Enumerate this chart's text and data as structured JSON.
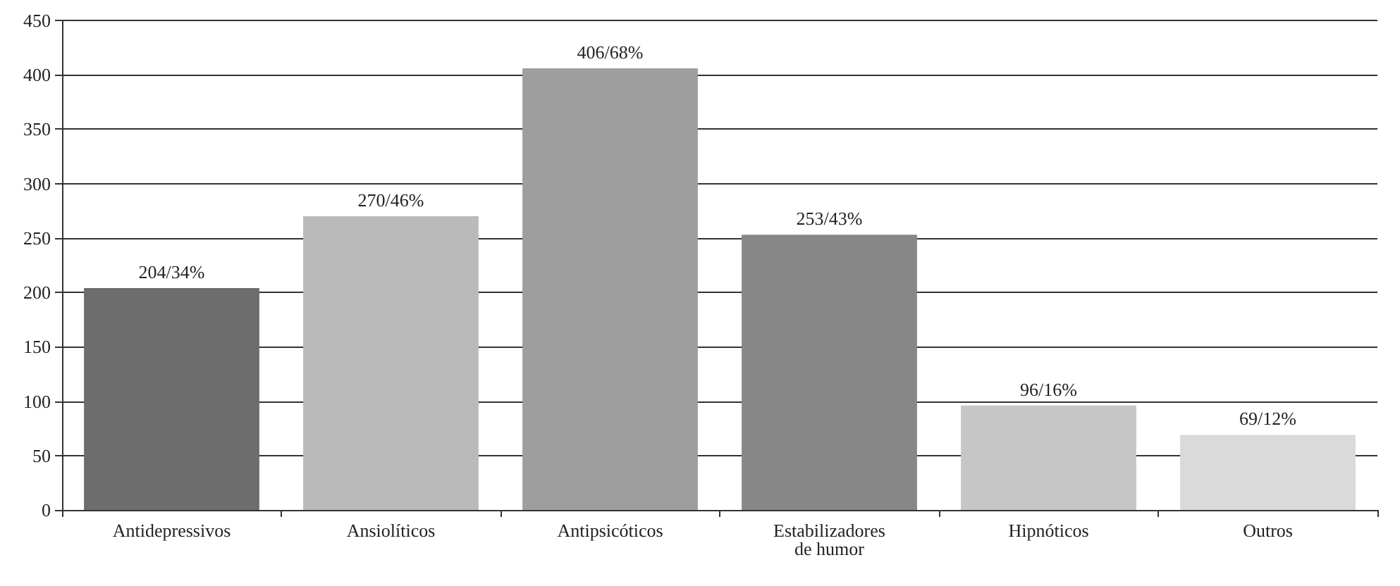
{
  "chart_data": {
    "type": "bar",
    "categories": [
      "Antidepressivos",
      "Ansiolíticos",
      "Antipsicóticos",
      "Estabilizadores\nde humor",
      "Hipnóticos",
      "Outros"
    ],
    "values": [
      204,
      270,
      406,
      253,
      96,
      69
    ],
    "colors": [
      "#6d6d6d",
      "#bababa",
      "#9e9e9e",
      "#878787",
      "#c6c6c6",
      "#dadada"
    ],
    "value_labels": [
      "204/34%",
      "270/46%",
      "406/68%",
      "253/43%",
      "96/16%",
      "69/12%"
    ],
    "ylim": [
      0,
      450
    ],
    "yticks": [
      0,
      50,
      100,
      150,
      200,
      250,
      300,
      350,
      400,
      450
    ],
    "grid": "y"
  }
}
